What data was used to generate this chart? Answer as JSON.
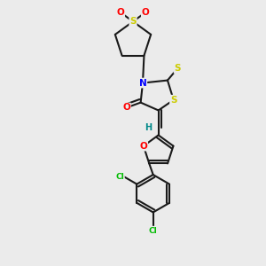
{
  "bg_color": "#ebebeb",
  "bond_color": "#1a1a1a",
  "atom_colors": {
    "O": "#ff0000",
    "S": "#cccc00",
    "N": "#0000ff",
    "Cl": "#00bb00",
    "H": "#008888",
    "S_thioxo": "#cccc00"
  },
  "figsize": [
    3.0,
    3.0
  ],
  "dpi": 100
}
